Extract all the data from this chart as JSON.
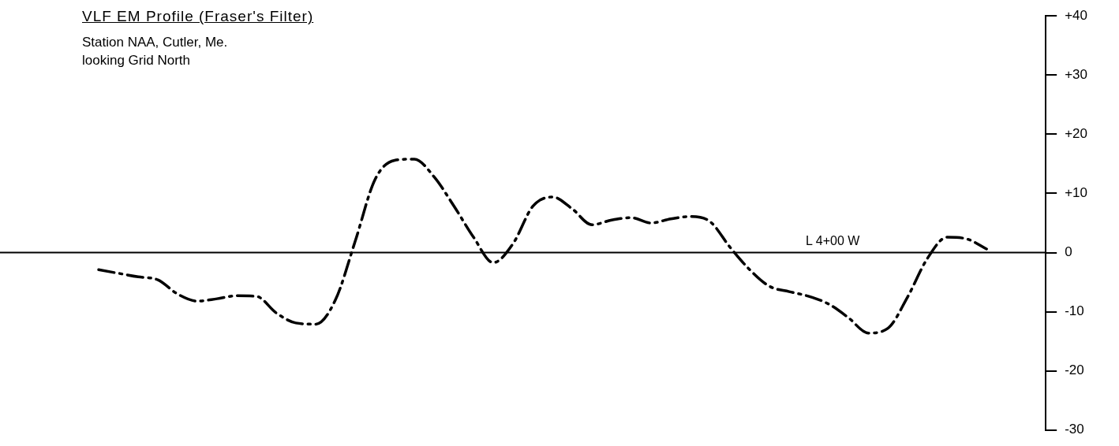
{
  "chart_data": {
    "type": "line",
    "title": "VLF EM Profile (Fraser's Filter)",
    "subtitle": "Station NAA, Cutler, Me.\nlooking Grid North",
    "categories": [
      null,
      null,
      null,
      null,
      null,
      null,
      null,
      null,
      null,
      null,
      null,
      null,
      null,
      null,
      null,
      null,
      null,
      null,
      null,
      null,
      null,
      null,
      null,
      null,
      null,
      null,
      null,
      null,
      null,
      null,
      null,
      null,
      null,
      null,
      null,
      null,
      null,
      null,
      null,
      null,
      null,
      null,
      null,
      null,
      null,
      null,
      null,
      null,
      null,
      null,
      null,
      null,
      null,
      null
    ],
    "series": [
      {
        "color": "#000000",
        "values": [
          null,
          null,
          null,
          null,
          null,
          -2.9,
          -3.5,
          -4.1,
          -4.6,
          -7.0,
          -8.2,
          -7.8,
          -7.3,
          -7.4,
          -10.2,
          -11.9,
          -12.1,
          -8.0,
          1.9,
          12.3,
          15.6,
          15.8,
          12.8,
          7.9,
          2.6,
          -1.7,
          1.5,
          7.8,
          9.4,
          7.4,
          4.7,
          5.5,
          5.9,
          5.0,
          5.7,
          6.1,
          5.2,
          0.9,
          -2.9,
          -5.7,
          -6.6,
          -7.4,
          -8.7,
          -11.0,
          -13.6,
          -12.8,
          -7.5,
          -1.0,
          2.6,
          2.3,
          0.6,
          null,
          null,
          null
        ]
      }
    ],
    "ylim": [
      -30,
      40
    ],
    "yticks": [
      {
        "value": 40,
        "label": "+40"
      },
      {
        "value": 30,
        "label": "+30"
      },
      {
        "value": 20,
        "label": "+20"
      },
      {
        "value": 10,
        "label": "+10"
      },
      0,
      -10,
      -20,
      -30
    ],
    "ref_lines": [
      {
        "axis": "y",
        "value": 0,
        "label": "L 4+00 W",
        "color": "#000000"
      }
    ],
    "grid": false,
    "legend": false,
    "marker": "none",
    "line_style": "dashed",
    "tick_labels": "y"
  }
}
